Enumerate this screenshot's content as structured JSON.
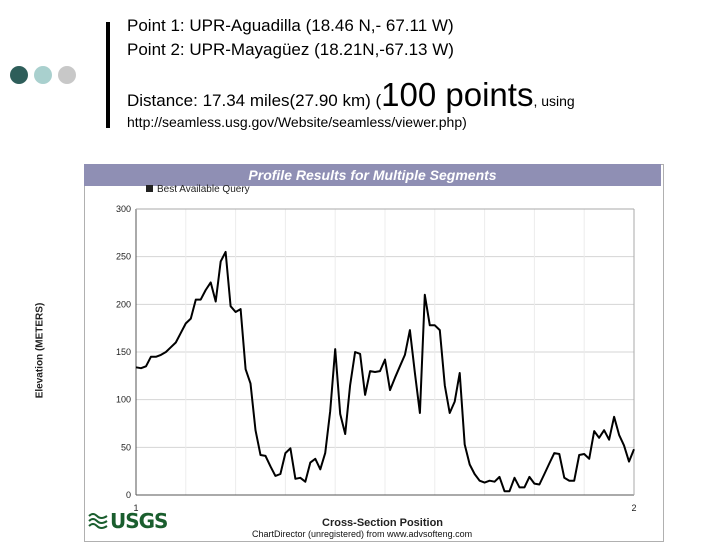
{
  "slide": {
    "line1": "Point 1: UPR-Aguadilla (18.46 N,- 67.11 W)",
    "line2": "Point 2: UPR-Mayagüez (18.21N,-67.13 W)",
    "line3_prefix": "Distance: 17.34 miles(27.90 km)  (",
    "line3_big": "100 points",
    "line3_suffix": ", using",
    "url": "http://seamless.usg.gov/Website/seamless/viewer.php)"
  },
  "bullet_colors": [
    "#2e5e5a",
    "#a9d0ce",
    "#c8c8c8"
  ],
  "accent": "#8f8fb4",
  "logo_text": "USGS",
  "footer": "ChartDirector (unregistered) from www.advsofteng.com",
  "chart_data": {
    "type": "line",
    "title": "Profile Results for Multiple Segments",
    "legend": [
      "Best Available Query"
    ],
    "xlabel": "Cross-Section Position",
    "ylabel": "Elevation (METERS)",
    "xlim": [
      1,
      2
    ],
    "ylim": [
      0,
      300
    ],
    "yticks": [
      0,
      50,
      100,
      150,
      200,
      250,
      300
    ],
    "xticks": [
      1,
      2
    ],
    "grid": true,
    "series": [
      {
        "name": "Best Available Query",
        "color": "#000000",
        "y": [
          134,
          133,
          135,
          145,
          145,
          147,
          150,
          155,
          160,
          170,
          180,
          185,
          205,
          205,
          215,
          223,
          203,
          245,
          255,
          198,
          192,
          195,
          132,
          117,
          68,
          42,
          41,
          30,
          20,
          22,
          44,
          49,
          17,
          18,
          14,
          34,
          38,
          27,
          44,
          88,
          153,
          85,
          64,
          115,
          150,
          148,
          105,
          130,
          129,
          130,
          142,
          110,
          123,
          135,
          147,
          173,
          128,
          86,
          210,
          178,
          178,
          173,
          115,
          86,
          98,
          128,
          53,
          32,
          22,
          15,
          13,
          15,
          14,
          19,
          4,
          4,
          18,
          8,
          8,
          19,
          12,
          11,
          22,
          33,
          44,
          43,
          18,
          15,
          15,
          42,
          43,
          38,
          67,
          60,
          68,
          58,
          82,
          63,
          52,
          35,
          48
        ]
      }
    ]
  }
}
